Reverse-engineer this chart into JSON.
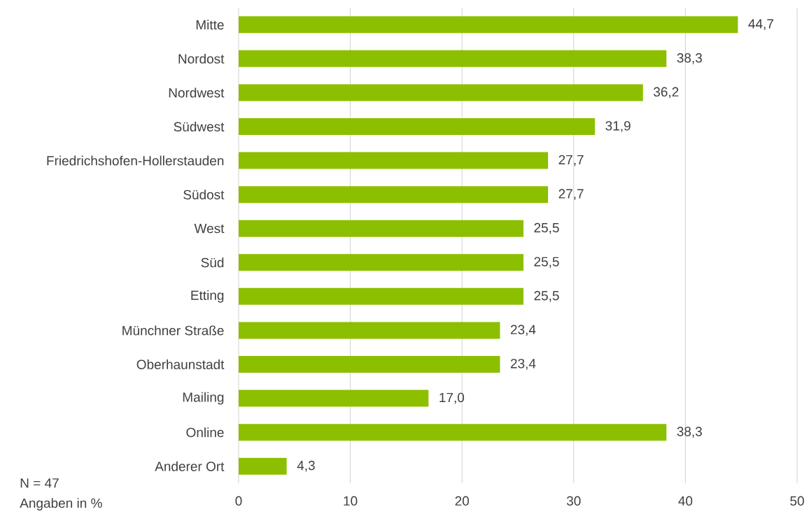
{
  "chart_data": {
    "type": "bar",
    "orientation": "horizontal",
    "categories": [
      "Mitte",
      "Nordost",
      "Nordwest",
      "Südwest",
      "Friedrichshofen-Hollerstauden",
      "Südost",
      "West",
      "Süd",
      "Etting",
      "Münchner Straße",
      "Oberhaunstadt",
      "Mailing",
      "Online",
      "Anderer Ort"
    ],
    "values": [
      44.7,
      38.3,
      36.2,
      31.9,
      27.7,
      27.7,
      25.5,
      25.5,
      25.5,
      23.4,
      23.4,
      17.0,
      38.3,
      4.3
    ],
    "value_labels": [
      "44,7",
      "38,3",
      "36,2",
      "31,9",
      "27,7",
      "27,7",
      "25,5",
      "25,5",
      "25,5",
      "23,4",
      "23,4",
      "17,0",
      "38,3",
      "4,3"
    ],
    "color": "#8cbf00",
    "xlim": [
      0,
      50
    ],
    "xticks": [
      0,
      10,
      20,
      30,
      40,
      50
    ],
    "grid": "x",
    "annotations": [
      "N = 47",
      "Angaben in %"
    ]
  }
}
